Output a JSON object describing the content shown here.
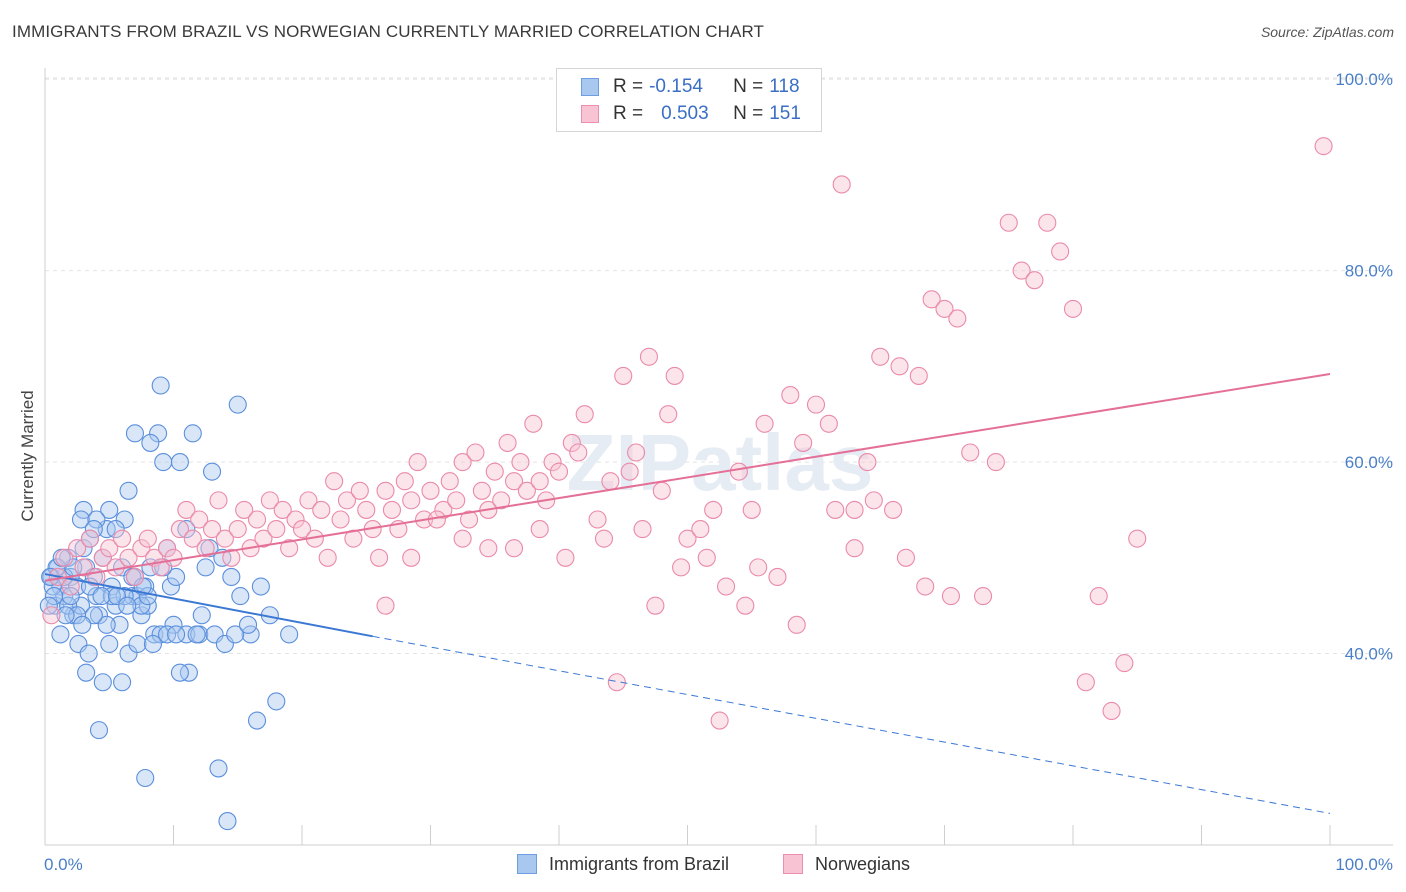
{
  "title": "IMMIGRANTS FROM BRAZIL VS NORWEGIAN CURRENTLY MARRIED CORRELATION CHART",
  "source": "Source: ZipAtlas.com",
  "watermark": "ZIPatlas",
  "legend": {
    "rows": [
      {
        "r_label": "R =",
        "r_value": "-0.154",
        "n_label": "N =",
        "n_value": "118",
        "color": "#a9c8f0",
        "border": "#6f9ee0"
      },
      {
        "r_label": "R =",
        "r_value": "0.503",
        "n_label": "N =",
        "n_value": "151",
        "color": "#f8c3d3",
        "border": "#eb8fae"
      }
    ]
  },
  "bottom_legend": [
    {
      "label": "Immigrants from Brazil",
      "color": "#a9c8f0",
      "border": "#6f9ee0"
    },
    {
      "label": "Norwegians",
      "color": "#f8c3d3",
      "border": "#eb8fae"
    }
  ],
  "chart_data": {
    "type": "scatter",
    "title": "IMMIGRANTS FROM BRAZIL VS NORWEGIAN CURRENTLY MARRIED CORRELATION CHART",
    "xlabel": "",
    "ylabel": "Currently Married",
    "xlim": [
      0,
      100
    ],
    "ylim": [
      20,
      102
    ],
    "x_tick_labels": [
      "0.0%",
      "100.0%"
    ],
    "y_ticks": [
      40,
      60,
      80,
      100
    ],
    "y_tick_labels": [
      "40.0%",
      "60.0%",
      "80.0%",
      "100.0%"
    ],
    "grid": true,
    "legend_position": "top-center",
    "series": [
      {
        "name": "Immigrants from Brazil",
        "color": "#5b8fdc",
        "fill": "#a9c8f0",
        "trend": {
          "x": [
            0,
            25.5
          ],
          "y": [
            48.3,
            41.8
          ],
          "dashed_to": [
            100,
            23.3
          ],
          "color": "#3a78d4"
        },
        "points": [
          [
            0.5,
            48
          ],
          [
            0.8,
            45
          ],
          [
            1.0,
            49
          ],
          [
            1.2,
            47
          ],
          [
            1.5,
            46
          ],
          [
            1.8,
            50
          ],
          [
            2.0,
            48
          ],
          [
            2.2,
            44
          ],
          [
            2.5,
            47
          ],
          [
            2.8,
            45
          ],
          [
            3.0,
            51
          ],
          [
            3.2,
            49
          ],
          [
            3.5,
            52
          ],
          [
            3.8,
            48
          ],
          [
            4.0,
            46
          ],
          [
            4.2,
            44
          ],
          [
            4.5,
            50
          ],
          [
            4.8,
            53
          ],
          [
            5.0,
            55
          ],
          [
            5.2,
            47
          ],
          [
            5.5,
            45
          ],
          [
            5.8,
            43
          ],
          [
            6.0,
            49
          ],
          [
            6.2,
            54
          ],
          [
            6.5,
            57
          ],
          [
            6.8,
            46
          ],
          [
            7.0,
            48
          ],
          [
            7.2,
            46
          ],
          [
            7.5,
            44
          ],
          [
            7.8,
            47
          ],
          [
            8.0,
            45
          ],
          [
            8.2,
            49
          ],
          [
            8.5,
            42
          ],
          [
            8.8,
            63
          ],
          [
            9.0,
            68
          ],
          [
            9.2,
            60
          ],
          [
            9.5,
            51
          ],
          [
            9.8,
            47
          ],
          [
            10.0,
            43
          ],
          [
            10.2,
            48
          ],
          [
            10.5,
            60
          ],
          [
            11.0,
            42
          ],
          [
            11.2,
            38
          ],
          [
            11.5,
            63
          ],
          [
            12.0,
            42
          ],
          [
            12.5,
            49
          ],
          [
            13.0,
            59
          ],
          [
            13.2,
            42
          ],
          [
            14.0,
            41
          ],
          [
            14.5,
            48
          ],
          [
            15.0,
            66
          ],
          [
            15.2,
            46
          ],
          [
            16.0,
            42
          ],
          [
            18.0,
            35
          ],
          [
            14.2,
            22.5
          ],
          [
            13.5,
            28
          ],
          [
            7.8,
            27
          ],
          [
            11.0,
            53
          ],
          [
            12.8,
            51
          ],
          [
            14.8,
            42
          ],
          [
            4.5,
            37
          ],
          [
            3.2,
            38
          ],
          [
            5.0,
            41
          ],
          [
            6.0,
            37
          ],
          [
            6.5,
            40
          ],
          [
            4.2,
            32
          ],
          [
            9.0,
            42
          ],
          [
            10.5,
            38
          ],
          [
            7.0,
            63
          ],
          [
            8.2,
            62
          ],
          [
            3.0,
            55
          ],
          [
            2.8,
            54
          ],
          [
            4.0,
            54
          ],
          [
            1.5,
            48
          ],
          [
            2.2,
            49
          ],
          [
            3.5,
            47
          ],
          [
            1.2,
            42
          ],
          [
            1.8,
            45
          ],
          [
            2.5,
            44
          ],
          [
            0.6,
            47
          ],
          [
            0.9,
            49
          ],
          [
            1.3,
            50
          ],
          [
            2.0,
            46
          ],
          [
            3.8,
            53
          ],
          [
            5.5,
            53
          ],
          [
            6.8,
            48
          ],
          [
            7.5,
            45
          ],
          [
            8.0,
            46
          ],
          [
            9.5,
            42
          ],
          [
            11.8,
            42
          ],
          [
            16.5,
            33
          ],
          [
            19.0,
            42
          ],
          [
            7.2,
            41
          ],
          [
            6.2,
            46
          ],
          [
            5.2,
            46
          ],
          [
            4.8,
            43
          ],
          [
            3.8,
            44
          ],
          [
            2.6,
            41
          ],
          [
            1.6,
            44
          ],
          [
            0.7,
            46
          ],
          [
            0.4,
            48
          ],
          [
            0.3,
            45
          ],
          [
            4.4,
            46
          ],
          [
            5.6,
            46
          ],
          [
            6.4,
            45
          ],
          [
            7.6,
            47
          ],
          [
            8.4,
            41
          ],
          [
            9.2,
            49
          ],
          [
            10.2,
            42
          ],
          [
            12.2,
            44
          ],
          [
            13.8,
            50
          ],
          [
            15.8,
            43
          ],
          [
            16.8,
            47
          ],
          [
            17.5,
            44
          ],
          [
            3.4,
            40
          ],
          [
            2.9,
            43
          ]
        ]
      },
      {
        "name": "Norwegians",
        "color": "#ea8aaa",
        "fill": "#f8c3d3",
        "trend": {
          "x": [
            0,
            100
          ],
          "y": [
            47.6,
            69.2
          ],
          "color": "#e46f97"
        },
        "points": [
          [
            0.5,
            44
          ],
          [
            1.0,
            48
          ],
          [
            1.5,
            50
          ],
          [
            2.0,
            47
          ],
          [
            2.5,
            51
          ],
          [
            3.0,
            49
          ],
          [
            3.5,
            52
          ],
          [
            4.0,
            48
          ],
          [
            4.5,
            50
          ],
          [
            5.0,
            51
          ],
          [
            5.5,
            49
          ],
          [
            6.0,
            52
          ],
          [
            6.5,
            50
          ],
          [
            7.0,
            48
          ],
          [
            7.5,
            51
          ],
          [
            8.0,
            52
          ],
          [
            8.5,
            50
          ],
          [
            9.0,
            49
          ],
          [
            9.5,
            51
          ],
          [
            10.0,
            50
          ],
          [
            10.5,
            53
          ],
          [
            11.0,
            55
          ],
          [
            11.5,
            52
          ],
          [
            12.0,
            54
          ],
          [
            12.5,
            51
          ],
          [
            13.0,
            53
          ],
          [
            13.5,
            56
          ],
          [
            14.0,
            52
          ],
          [
            14.5,
            50
          ],
          [
            15.0,
            53
          ],
          [
            15.5,
            55
          ],
          [
            16.0,
            51
          ],
          [
            16.5,
            54
          ],
          [
            17.0,
            52
          ],
          [
            17.5,
            56
          ],
          [
            18.0,
            53
          ],
          [
            18.5,
            55
          ],
          [
            19.0,
            51
          ],
          [
            19.5,
            54
          ],
          [
            20.0,
            53
          ],
          [
            20.5,
            56
          ],
          [
            21.0,
            52
          ],
          [
            21.5,
            55
          ],
          [
            22.0,
            50
          ],
          [
            22.5,
            58
          ],
          [
            23.0,
            54
          ],
          [
            23.5,
            56
          ],
          [
            24.0,
            52
          ],
          [
            24.5,
            57
          ],
          [
            25.0,
            55
          ],
          [
            25.5,
            53
          ],
          [
            26.0,
            50
          ],
          [
            26.5,
            57
          ],
          [
            27.0,
            55
          ],
          [
            27.5,
            53
          ],
          [
            28.0,
            58
          ],
          [
            28.5,
            56
          ],
          [
            29.0,
            60
          ],
          [
            29.5,
            54
          ],
          [
            30.0,
            57
          ],
          [
            31.0,
            55
          ],
          [
            31.5,
            58
          ],
          [
            32.0,
            56
          ],
          [
            32.5,
            60
          ],
          [
            33.0,
            54
          ],
          [
            33.5,
            61
          ],
          [
            34.0,
            57
          ],
          [
            34.5,
            55
          ],
          [
            35.0,
            59
          ],
          [
            35.5,
            56
          ],
          [
            36.0,
            62
          ],
          [
            36.5,
            58
          ],
          [
            37.0,
            60
          ],
          [
            37.5,
            57
          ],
          [
            38.0,
            64
          ],
          [
            38.5,
            58
          ],
          [
            39.0,
            56
          ],
          [
            39.5,
            60
          ],
          [
            40.0,
            59
          ],
          [
            41.0,
            62
          ],
          [
            41.5,
            61
          ],
          [
            42.0,
            65
          ],
          [
            43.0,
            54
          ],
          [
            44.0,
            58
          ],
          [
            45.0,
            69
          ],
          [
            45.5,
            59
          ],
          [
            46.0,
            61
          ],
          [
            47.0,
            71
          ],
          [
            48.0,
            57
          ],
          [
            48.5,
            65
          ],
          [
            49.0,
            69
          ],
          [
            50.0,
            52
          ],
          [
            51.0,
            53
          ],
          [
            52.0,
            55
          ],
          [
            53.0,
            47
          ],
          [
            54.0,
            59
          ],
          [
            55.0,
            55
          ],
          [
            56.0,
            64
          ],
          [
            57.0,
            48
          ],
          [
            58.0,
            67
          ],
          [
            59.0,
            62
          ],
          [
            60.0,
            66
          ],
          [
            61.0,
            64
          ],
          [
            62.0,
            89
          ],
          [
            63.0,
            55
          ],
          [
            64.0,
            60
          ],
          [
            65.0,
            71
          ],
          [
            66.0,
            55
          ],
          [
            67.0,
            50
          ],
          [
            68.0,
            69
          ],
          [
            69.0,
            77
          ],
          [
            70.0,
            76
          ],
          [
            71.0,
            75
          ],
          [
            72.0,
            61
          ],
          [
            73.0,
            46
          ],
          [
            74.0,
            60
          ],
          [
            75.0,
            85
          ],
          [
            76.0,
            80
          ],
          [
            77.0,
            79
          ],
          [
            78.0,
            85
          ],
          [
            79.0,
            82
          ],
          [
            80.0,
            76
          ],
          [
            81.0,
            37
          ],
          [
            82.0,
            46
          ],
          [
            83.0,
            34
          ],
          [
            84.0,
            39
          ],
          [
            85.0,
            52
          ],
          [
            99.5,
            93
          ],
          [
            44.5,
            37
          ],
          [
            52.5,
            33
          ],
          [
            49.5,
            49
          ],
          [
            47.5,
            45
          ],
          [
            54.5,
            45
          ],
          [
            58.5,
            43
          ],
          [
            61.5,
            55
          ],
          [
            64.5,
            56
          ],
          [
            66.5,
            70
          ],
          [
            68.5,
            47
          ],
          [
            70.5,
            46
          ],
          [
            63.0,
            51
          ],
          [
            55.5,
            49
          ],
          [
            51.5,
            50
          ],
          [
            46.5,
            53
          ],
          [
            43.5,
            52
          ],
          [
            40.5,
            50
          ],
          [
            38.5,
            53
          ],
          [
            36.5,
            51
          ],
          [
            34.5,
            51
          ],
          [
            32.5,
            52
          ],
          [
            30.5,
            54
          ],
          [
            28.5,
            50
          ],
          [
            26.5,
            45
          ]
        ]
      }
    ]
  }
}
